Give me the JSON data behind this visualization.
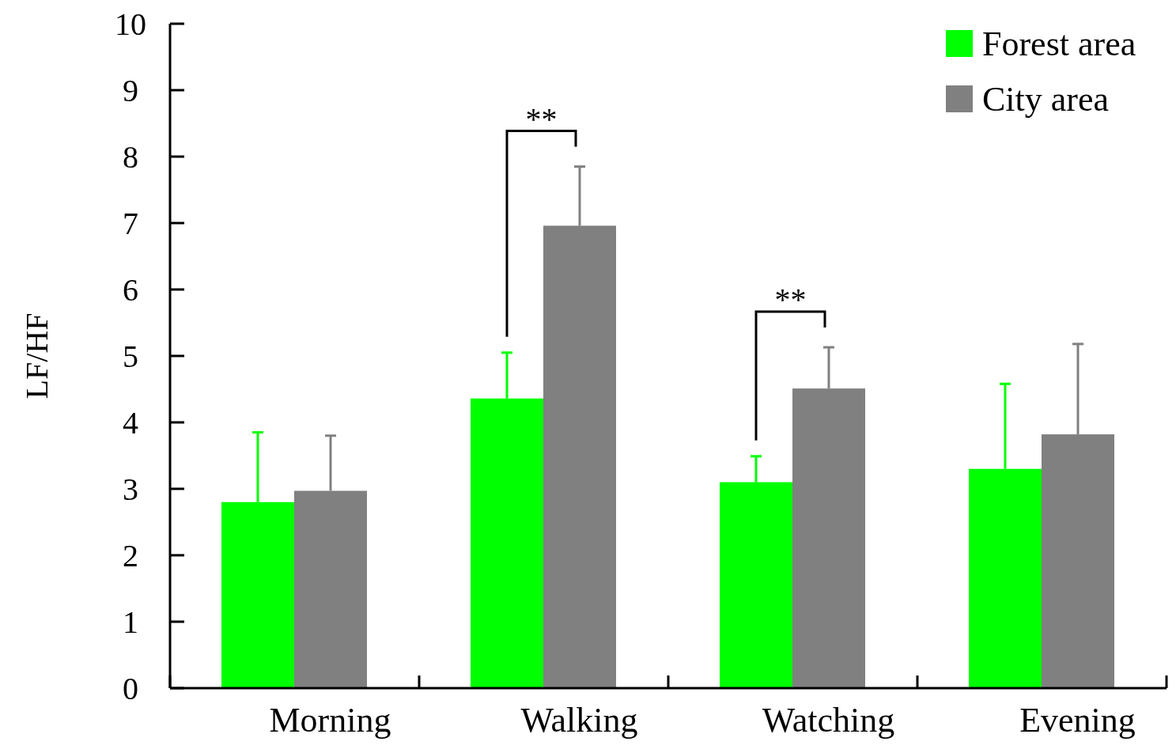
{
  "chart_data": {
    "type": "bar",
    "ylabel": "LF/HF",
    "categories": [
      "Morning",
      "Walking",
      "Watching",
      "Evening"
    ],
    "series": [
      {
        "name": "Forest area",
        "color": "#00ff00",
        "values": [
          2.8,
          4.36,
          3.1,
          3.3
        ],
        "errors": [
          [
            2.8,
            3.85
          ],
          [
            4.36,
            5.05
          ],
          [
            3.1,
            3.49
          ],
          [
            3.3,
            4.58
          ]
        ]
      },
      {
        "name": "City area",
        "color": "#808080",
        "values": [
          2.97,
          6.96,
          4.51,
          3.82
        ],
        "errors": [
          [
            2.97,
            3.8
          ],
          [
            6.96,
            7.85
          ],
          [
            4.51,
            5.13
          ],
          [
            3.82,
            5.18
          ]
        ]
      }
    ],
    "ylim": [
      0,
      10
    ],
    "yticks": [
      0,
      1,
      2,
      3,
      4,
      5,
      6,
      7,
      8,
      9,
      10
    ],
    "legend": "top right",
    "grid": false,
    "annotations": [
      "**",
      "**"
    ]
  }
}
